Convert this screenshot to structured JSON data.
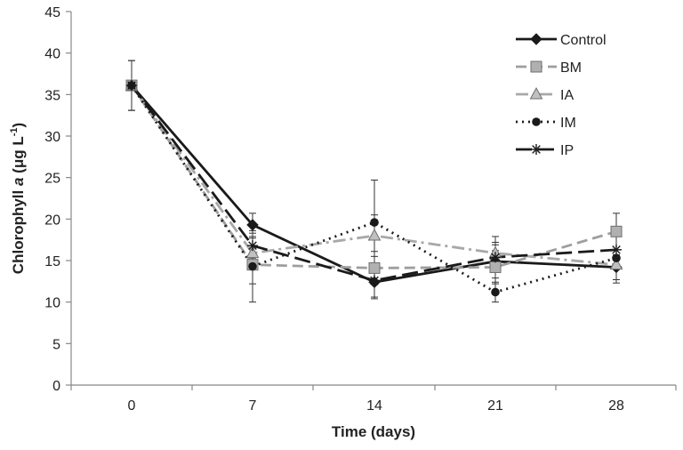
{
  "chart_data": {
    "type": "line",
    "xlabel": "Time (days)",
    "ylabel": {
      "prefix": "Chlorophyll ",
      "italic": "a",
      "unit_open": " (μg L",
      "superscript": "-1",
      "unit_close": ")"
    },
    "x": [
      0,
      7,
      14,
      21,
      28
    ],
    "x_tick_labels": [
      "0",
      "7",
      "14",
      "21",
      "28"
    ],
    "ylim": [
      0,
      45
    ],
    "y_ticks": [
      0,
      5,
      10,
      15,
      20,
      25,
      30,
      35,
      40,
      45
    ],
    "y_tick_labels": [
      "0",
      "5",
      "10",
      "15",
      "20",
      "25",
      "30",
      "35",
      "40",
      "45"
    ],
    "grid": false,
    "legend_position": "top-right",
    "series": [
      {
        "name": "Control",
        "values": [
          36.1,
          19.3,
          12.4,
          14.9,
          14.2
        ],
        "errors": [
          3.0,
          1.4,
          2.0,
          2.0,
          1.5
        ],
        "color": "#1a1a1a",
        "dash": "solid",
        "marker": "diamond"
      },
      {
        "name": "BM",
        "values": [
          36.1,
          14.5,
          14.1,
          14.2,
          18.5
        ],
        "errors": [
          3.0,
          2.3,
          2.0,
          2.0,
          2.2
        ],
        "color": "#9e9e9e",
        "dash": "dash",
        "marker": "square"
      },
      {
        "name": "IA",
        "values": [
          36.1,
          15.9,
          18.0,
          15.9,
          14.5
        ],
        "errors": [
          3.0,
          1.8,
          2.5,
          2.0,
          1.8
        ],
        "color": "#a8a8a8",
        "dash": "dashdot",
        "marker": "triangle"
      },
      {
        "name": "IM",
        "values": [
          36.1,
          14.3,
          19.6,
          11.2,
          15.3
        ],
        "errors": [
          3.0,
          4.3,
          5.1,
          1.2,
          3.0
        ],
        "color": "#1a1a1a",
        "dash": "dot",
        "marker": "circle"
      },
      {
        "name": "IP",
        "values": [
          36.1,
          16.8,
          12.6,
          15.4,
          16.3
        ],
        "errors": [
          3.0,
          1.5,
          2.0,
          1.8,
          2.0
        ],
        "color": "#1a1a1a",
        "dash": "longdash",
        "marker": "star"
      }
    ]
  }
}
